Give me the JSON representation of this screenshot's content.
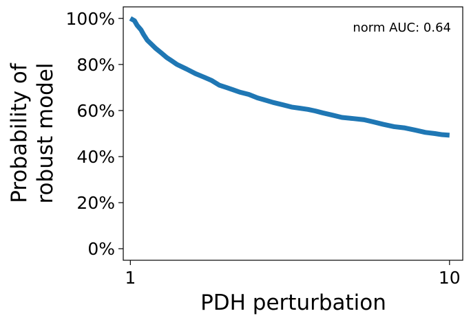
{
  "chart_data": {
    "type": "line",
    "title": "",
    "xlabel": "PDH perturbation",
    "ylabel_lines": [
      "Probability of",
      "robust model"
    ],
    "x_scale": "log",
    "xlim": [
      0.95,
      11.0
    ],
    "ylim": [
      -0.05,
      1.05
    ],
    "x_ticks": [
      1,
      10
    ],
    "x_tick_labels": [
      "1",
      "10"
    ],
    "y_ticks": [
      0,
      0.2,
      0.4,
      0.6,
      0.8,
      1.0
    ],
    "y_tick_labels": [
      "0%",
      "20%",
      "40%",
      "60%",
      "80%",
      "100%"
    ],
    "grid": false,
    "legend": "none",
    "annotation": "norm AUC: 0.64",
    "annotation_position": "top-right",
    "series_color": "#1f77b4",
    "series": [
      {
        "x": [
          1.0,
          1.03,
          1.05,
          1.08,
          1.1,
          1.13,
          1.17,
          1.2,
          1.25,
          1.3,
          1.35,
          1.4,
          1.5,
          1.6,
          1.7,
          1.8,
          1.9,
          2.0,
          2.1,
          2.2,
          2.35,
          2.5,
          2.65,
          2.8,
          3.0,
          3.2,
          3.4,
          3.6,
          3.8,
          4.0,
          4.3,
          4.6,
          5.0,
          5.4,
          5.8,
          6.2,
          6.7,
          7.2,
          7.8,
          8.4,
          9.0,
          9.5,
          10.0
        ],
        "y": [
          1.0,
          0.99,
          0.97,
          0.95,
          0.93,
          0.905,
          0.885,
          0.87,
          0.85,
          0.83,
          0.815,
          0.8,
          0.78,
          0.76,
          0.745,
          0.73,
          0.71,
          0.7,
          0.69,
          0.68,
          0.67,
          0.655,
          0.645,
          0.635,
          0.625,
          0.615,
          0.61,
          0.605,
          0.598,
          0.59,
          0.58,
          0.57,
          0.565,
          0.56,
          0.55,
          0.54,
          0.53,
          0.525,
          0.515,
          0.505,
          0.5,
          0.495,
          0.493
        ]
      }
    ]
  }
}
